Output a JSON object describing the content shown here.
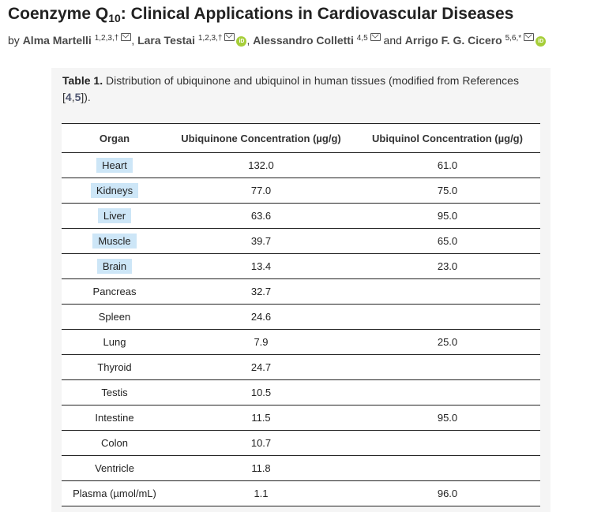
{
  "article": {
    "title_main": "Coenzyme Q",
    "title_sub": "10",
    "title_rest": ": Clinical Applications in Cardiovascular Diseases",
    "by": "by",
    "authors": [
      {
        "name": "Alma Martelli",
        "sup": "1,2,3,†",
        "icons": [
          "mail-icon"
        ],
        "sep": ","
      },
      {
        "name": "Lara Testai",
        "sup": "1,2,3,†",
        "icons": [
          "mail-icon",
          "orcid-icon"
        ],
        "sep": ","
      },
      {
        "name": "Alessandro Colletti",
        "sup": "4,5",
        "icons": [
          "mail-icon"
        ],
        "sep": " and"
      },
      {
        "name": "Arrigo F. G. Cicero",
        "sup": "5,6,*",
        "icons": [
          "mail-icon",
          "orcid-icon"
        ],
        "sep": ""
      }
    ]
  },
  "table": {
    "caption_label": "Table 1.",
    "caption_text": " Distribution of ubiquinone and ubiquinol in human tissues (modified from References ",
    "caption_refs_open": "[",
    "caption_ref_a": "4",
    "caption_ref_sep": ",",
    "caption_ref_b": "5",
    "caption_refs_close": "]).",
    "headers": [
      "Organ",
      "Ubiquinone Concentration (µg/g)",
      "Ubiquinol Concentration (µg/g)"
    ],
    "rows": [
      {
        "organ": "Heart",
        "ubiquinone": "132.0",
        "ubiquinol": "61.0",
        "highlight": true
      },
      {
        "organ": "Kidneys",
        "ubiquinone": "77.0",
        "ubiquinol": "75.0",
        "highlight": true
      },
      {
        "organ": "Liver",
        "ubiquinone": "63.6",
        "ubiquinol": "95.0",
        "highlight": true
      },
      {
        "organ": "Muscle",
        "ubiquinone": "39.7",
        "ubiquinol": "65.0",
        "highlight": true
      },
      {
        "organ": "Brain",
        "ubiquinone": "13.4",
        "ubiquinol": "23.0",
        "highlight": true
      },
      {
        "organ": "Pancreas",
        "ubiquinone": "32.7",
        "ubiquinol": "",
        "highlight": false
      },
      {
        "organ": "Spleen",
        "ubiquinone": "24.6",
        "ubiquinol": "",
        "highlight": false
      },
      {
        "organ": "Lung",
        "ubiquinone": "7.9",
        "ubiquinol": "25.0",
        "highlight": false
      },
      {
        "organ": "Thyroid",
        "ubiquinone": "24.7",
        "ubiquinol": "",
        "highlight": false
      },
      {
        "organ": "Testis",
        "ubiquinone": "10.5",
        "ubiquinol": "",
        "highlight": false
      },
      {
        "organ": "Intestine",
        "ubiquinone": "11.5",
        "ubiquinol": "95.0",
        "highlight": false
      },
      {
        "organ": "Colon",
        "ubiquinone": "10.7",
        "ubiquinol": "",
        "highlight": false
      },
      {
        "organ": "Ventricle",
        "ubiquinone": "11.8",
        "ubiquinol": "",
        "highlight": false
      },
      {
        "organ": "Plasma (µmol/mL)",
        "ubiquinone": "1.1",
        "ubiquinol": "96.0",
        "highlight": false
      }
    ]
  },
  "colors": {
    "highlight": "#cde6f7",
    "panel_bg": "#f5f5f5",
    "orcid": "#a6ce39",
    "ref_link": "#4f5671"
  }
}
